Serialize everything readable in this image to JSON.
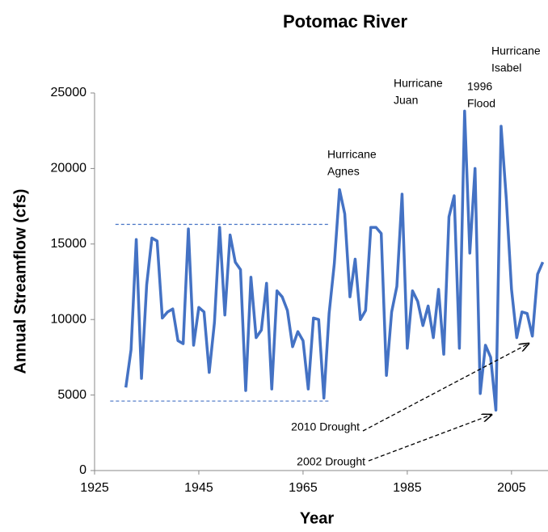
{
  "chart_data": {
    "type": "line",
    "title": "Potomac River",
    "x_label": "Year",
    "y_label": "Annual Streamflow (cfs)",
    "x": [
      1931,
      1932,
      1933,
      1934,
      1935,
      1936,
      1937,
      1938,
      1939,
      1940,
      1941,
      1942,
      1943,
      1944,
      1945,
      1946,
      1947,
      1948,
      1949,
      1950,
      1951,
      1952,
      1953,
      1954,
      1955,
      1956,
      1957,
      1958,
      1959,
      1960,
      1961,
      1962,
      1963,
      1964,
      1965,
      1966,
      1967,
      1968,
      1969,
      1970,
      1971,
      1972,
      1973,
      1974,
      1975,
      1976,
      1977,
      1978,
      1979,
      1980,
      1981,
      1982,
      1983,
      1984,
      1985,
      1986,
      1987,
      1988,
      1989,
      1990,
      1991,
      1992,
      1993,
      1994,
      1995,
      1996,
      1997,
      1998,
      1999,
      2000,
      2001,
      2002,
      2003,
      2004,
      2005,
      2006,
      2007,
      2008,
      2009,
      2010,
      2011
    ],
    "series": [
      {
        "name": "Annual Streamflow",
        "color": "#4472c4",
        "values": [
          5500,
          8000,
          15300,
          6100,
          12300,
          15400,
          15200,
          10100,
          10500,
          10700,
          8600,
          8400,
          16000,
          8300,
          10800,
          10500,
          6500,
          9800,
          16100,
          10300,
          15600,
          13800,
          13300,
          5300,
          12800,
          8800,
          9300,
          12400,
          5400,
          11900,
          11500,
          10600,
          8200,
          9200,
          8600,
          5400,
          10100,
          10000,
          4800,
          10400,
          13700,
          18600,
          17000,
          11500,
          14000,
          10000,
          10600,
          16100,
          16100,
          15700,
          6300,
          10500,
          12200,
          18300,
          8100,
          11900,
          11200,
          9600,
          10900,
          8800,
          12000,
          7700,
          16800,
          18200,
          8100,
          23800,
          14400,
          20000,
          5100,
          8300,
          7500,
          4000,
          22800,
          18000,
          12000,
          8800,
          10500,
          10400,
          8900,
          13000,
          13800
        ]
      }
    ],
    "reference_lines": [
      {
        "y": 16300,
        "x": [
          1929,
          1970
        ]
      },
      {
        "y": 4600,
        "x": [
          1928,
          1970
        ]
      }
    ],
    "annotations": [
      {
        "lines": [
          "Hurricane",
          "Agnes"
        ]
      },
      {
        "lines": [
          "Hurricane",
          "Juan"
        ]
      },
      {
        "lines": [
          "1996",
          "Flood"
        ]
      },
      {
        "lines": [
          "Hurricane",
          "Isabel"
        ]
      },
      {
        "lines": [
          "2010 Drought"
        ]
      },
      {
        "lines": [
          "2002 Drought"
        ]
      }
    ],
    "xlim": [
      1925,
      2012
    ],
    "ylim": [
      0,
      25000
    ],
    "xticks": [
      1925,
      1945,
      1965,
      1985,
      2005
    ],
    "yticks": [
      0,
      5000,
      10000,
      15000,
      20000,
      25000
    ]
  }
}
